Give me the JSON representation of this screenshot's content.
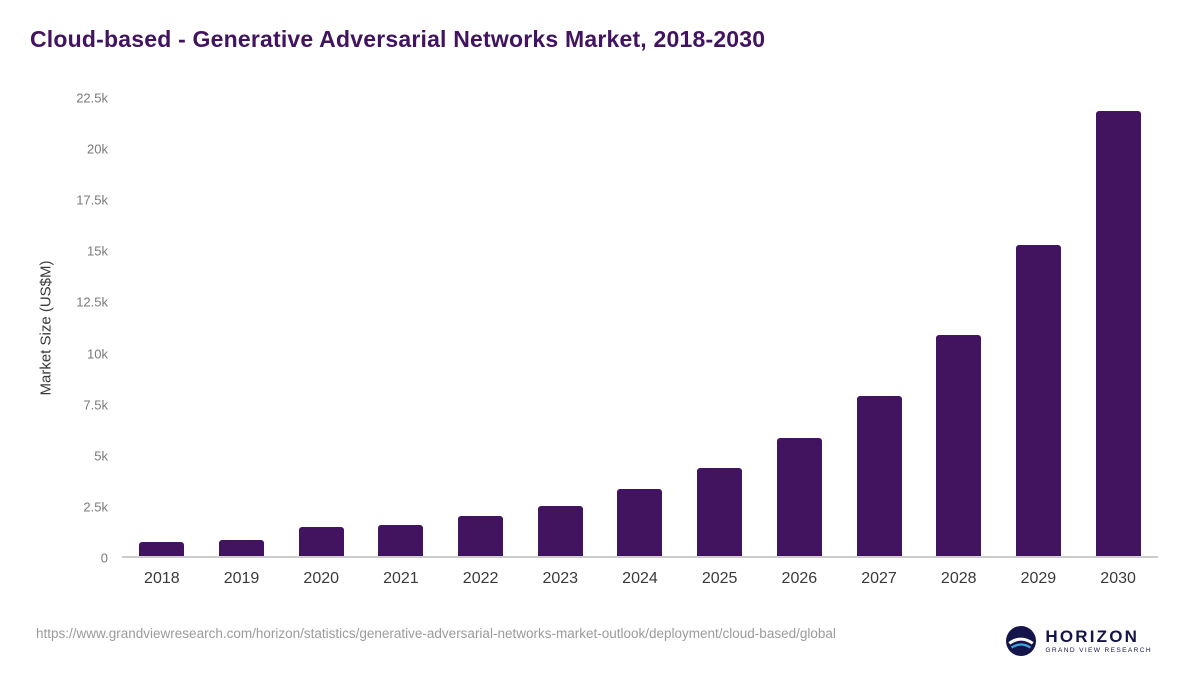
{
  "title": "Cloud-based - Generative Adversarial Networks Market, 2018-2030",
  "chart_data": {
    "type": "bar",
    "title": "Cloud-based - Generative Adversarial Networks Market, 2018-2030",
    "categories": [
      "2018",
      "2019",
      "2020",
      "2021",
      "2022",
      "2023",
      "2024",
      "2025",
      "2026",
      "2027",
      "2028",
      "2029",
      "2030"
    ],
    "values": [
      700,
      780,
      1430,
      1540,
      1990,
      2480,
      3300,
      4320,
      5800,
      7870,
      10880,
      15300,
      21870
    ],
    "xlabel": "",
    "ylabel": "Market Size (US$M)",
    "ylim": [
      0,
      22500
    ],
    "yticks": [
      "0",
      "2.5k",
      "5k",
      "7.5k",
      "10k",
      "12.5k",
      "15k",
      "17.5k",
      "20k",
      "22.5k"
    ],
    "bar_color": "#42145f",
    "grid": false,
    "legend": false
  },
  "footer": {
    "source_url": "https://www.grandviewresearch.com/horizon/statistics/generative-adversarial-networks-market-outlook/deployment/cloud-based/global",
    "logo_name": "HORIZON",
    "logo_subtext": "GRAND VIEW RESEARCH"
  },
  "colors": {
    "title": "#42145f",
    "bar": "#42145f",
    "axis_line": "#cccccc",
    "tick_text": "#7a7a7a",
    "source_text": "#9b9b9b",
    "logo_navy": "#15154b",
    "logo_blue": "#3fa9dc"
  }
}
